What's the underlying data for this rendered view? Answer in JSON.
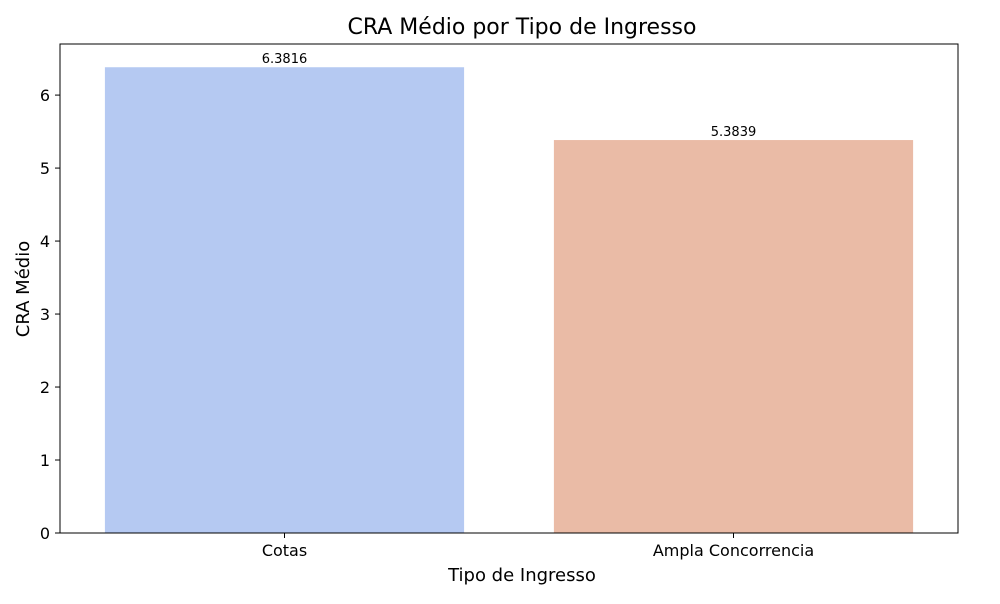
{
  "chart_data": {
    "type": "bar",
    "title": "CRA Médio por Tipo de Ingresso",
    "xlabel": "Tipo de Ingresso",
    "ylabel": "CRA Médio",
    "categories": [
      "Cotas",
      "Ampla Concorrencia"
    ],
    "values": [
      6.3816,
      5.3839
    ],
    "value_labels": [
      "6.3816",
      "5.3839"
    ],
    "bar_colors": [
      "#b5c9f2",
      "#eabba6"
    ],
    "ylim": [
      0,
      6.7
    ],
    "yticks": [
      0,
      1,
      2,
      3,
      4,
      5,
      6
    ],
    "grid": false,
    "legend": "none"
  }
}
